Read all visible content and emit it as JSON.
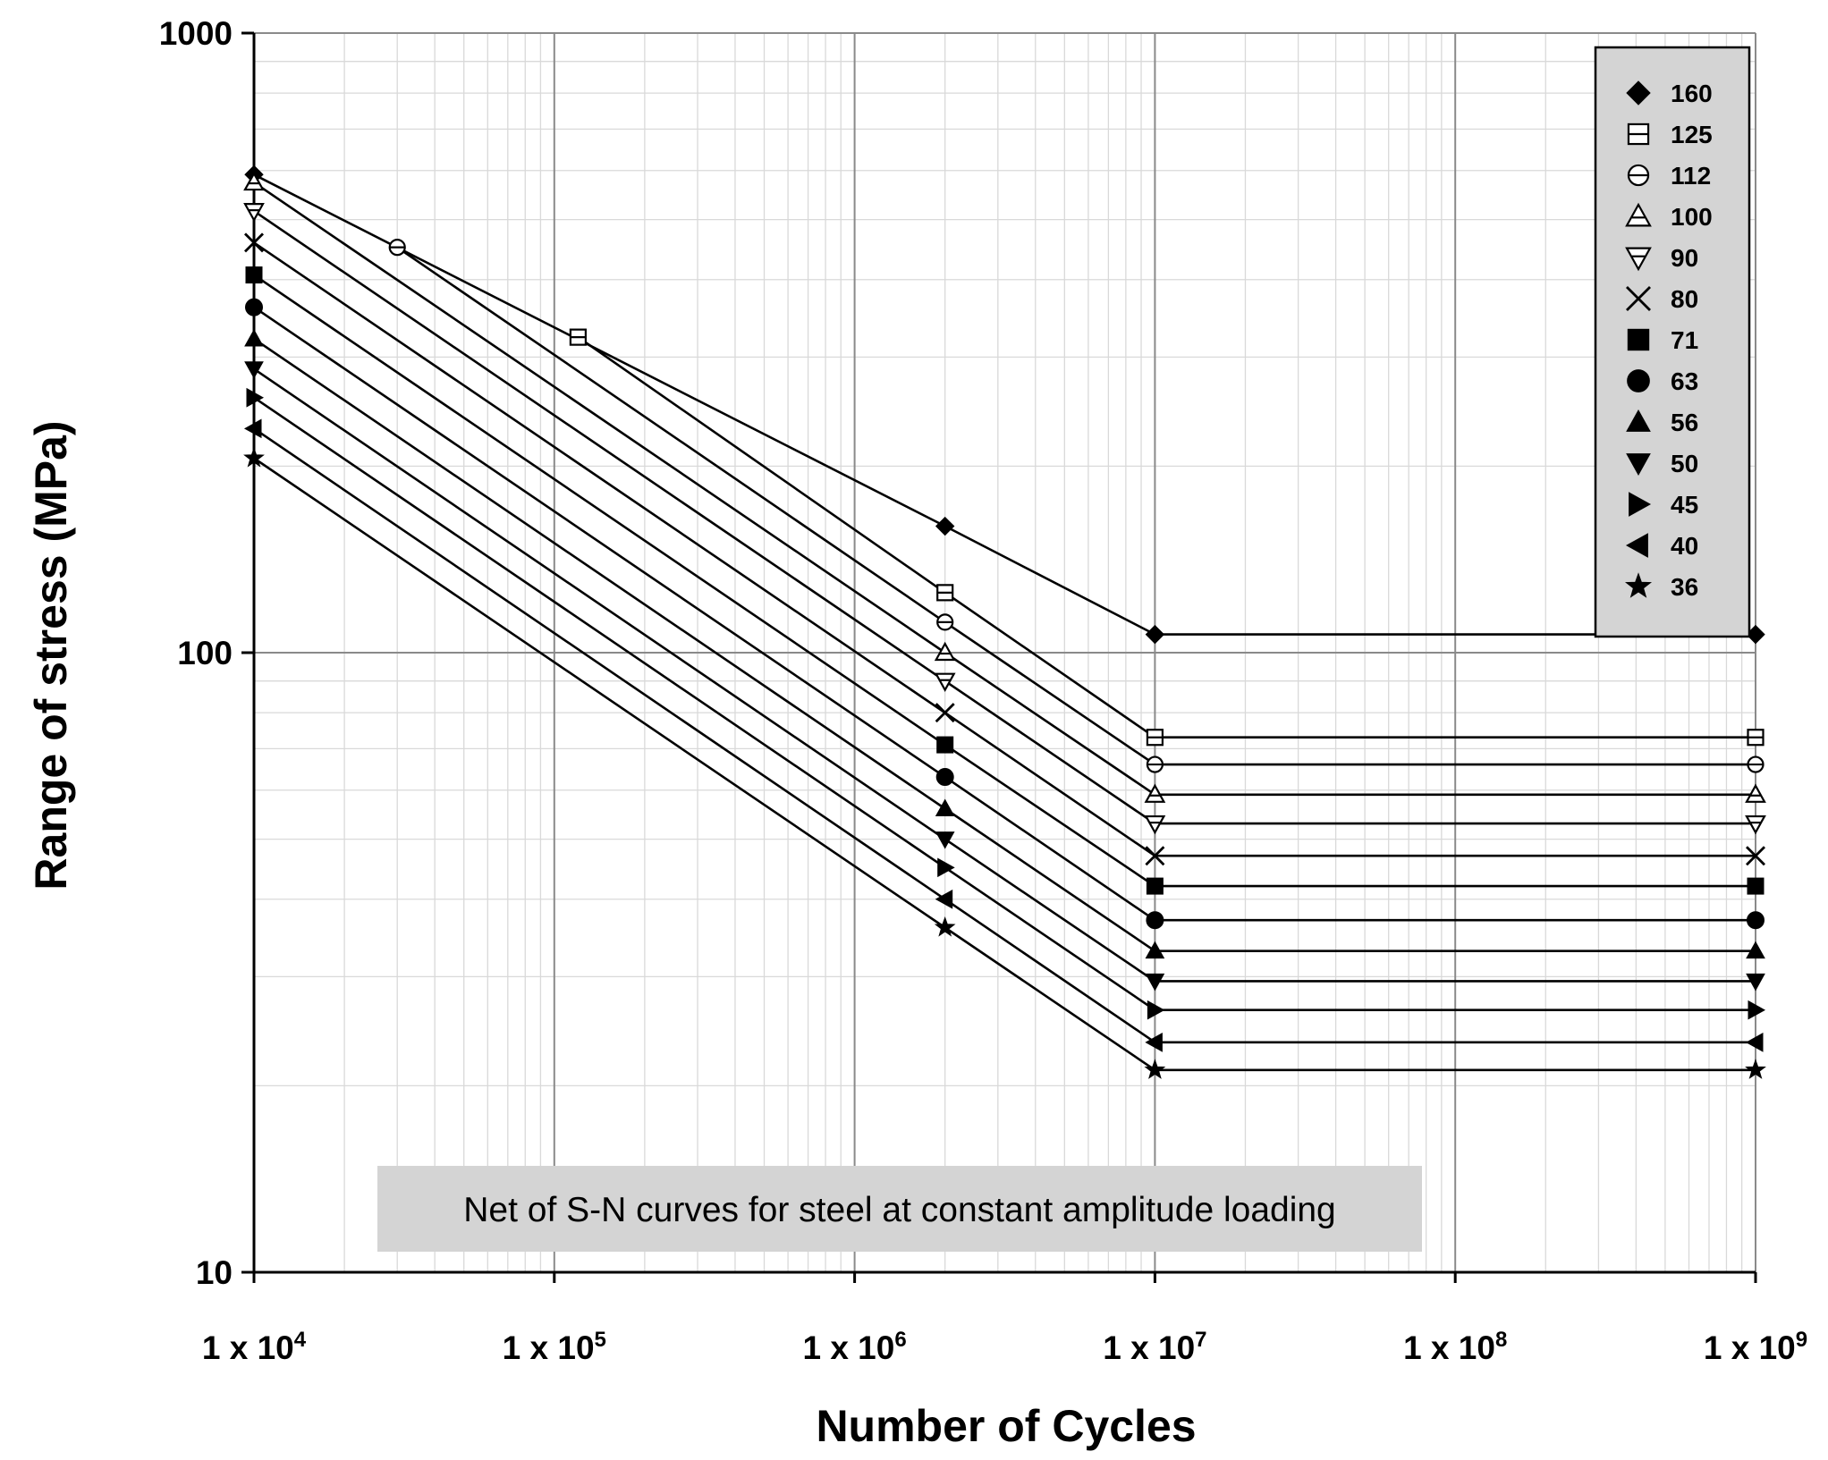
{
  "chart_data": {
    "type": "line",
    "title": "",
    "annotation": "Net of S-N curves for steel at constant amplitude loading",
    "xlabel": "Number of Cycles",
    "ylabel": "Range of stress (MPa)",
    "x_scale": "log",
    "y_scale": "log",
    "xlim": [
      10000,
      1000000000
    ],
    "ylim": [
      10,
      1000
    ],
    "x_ticks": [
      {
        "value": 10000,
        "base": "1 x 10",
        "exp": "4"
      },
      {
        "value": 100000,
        "base": "1 x 10",
        "exp": "5"
      },
      {
        "value": 1000000,
        "base": "1 x 10",
        "exp": "6"
      },
      {
        "value": 10000000,
        "base": "1 x 10",
        "exp": "7"
      },
      {
        "value": 100000000,
        "base": "1 x 10",
        "exp": "8"
      },
      {
        "value": 1000000000,
        "base": "1 x 10",
        "exp": "9"
      }
    ],
    "y_ticks": [
      {
        "value": 10,
        "label": "10"
      },
      {
        "value": 100,
        "label": "100"
      },
      {
        "value": 1000,
        "label": "1000"
      }
    ],
    "grid": true,
    "legend_position": "top-right",
    "series": [
      {
        "name": "160",
        "marker": "diamond-filled",
        "points": [
          [
            10000,
            591
          ],
          [
            2000000,
            160
          ],
          [
            10000000,
            107
          ],
          [
            1000000000,
            107
          ]
        ]
      },
      {
        "name": "125",
        "marker": "square-open",
        "points": [
          [
            120000,
            323
          ],
          [
            2000000,
            125
          ],
          [
            10000000,
            73
          ],
          [
            1000000000,
            73
          ]
        ]
      },
      {
        "name": "112",
        "marker": "circle-open",
        "points": [
          [
            30000,
            451
          ],
          [
            2000000,
            112
          ],
          [
            10000000,
            66
          ],
          [
            1000000000,
            66
          ]
        ]
      },
      {
        "name": "100",
        "marker": "triangle-up-open",
        "points": [
          [
            10000,
            574
          ],
          [
            2000000,
            100
          ],
          [
            10000000,
            59
          ],
          [
            1000000000,
            59
          ]
        ]
      },
      {
        "name": "90",
        "marker": "triangle-down-open",
        "points": [
          [
            10000,
            516
          ],
          [
            2000000,
            90
          ],
          [
            10000000,
            53
          ],
          [
            1000000000,
            53
          ]
        ]
      },
      {
        "name": "80",
        "marker": "x-cross",
        "points": [
          [
            10000,
            459
          ],
          [
            2000000,
            80
          ],
          [
            10000000,
            47
          ],
          [
            1000000000,
            47
          ]
        ]
      },
      {
        "name": "71",
        "marker": "square-filled",
        "points": [
          [
            10000,
            407
          ],
          [
            2000000,
            71
          ],
          [
            10000000,
            42
          ],
          [
            1000000000,
            42
          ]
        ]
      },
      {
        "name": "63",
        "marker": "circle-filled",
        "points": [
          [
            10000,
            361
          ],
          [
            2000000,
            63
          ],
          [
            10000000,
            37
          ],
          [
            1000000000,
            37
          ]
        ]
      },
      {
        "name": "56",
        "marker": "triangle-up-filled",
        "points": [
          [
            10000,
            321
          ],
          [
            2000000,
            56
          ],
          [
            10000000,
            33
          ],
          [
            1000000000,
            33
          ]
        ]
      },
      {
        "name": "50",
        "marker": "triangle-down-filled",
        "points": [
          [
            10000,
            287
          ],
          [
            2000000,
            50
          ],
          [
            10000000,
            29.5
          ],
          [
            1000000000,
            29.5
          ]
        ]
      },
      {
        "name": "45",
        "marker": "triangle-right-filled",
        "points": [
          [
            10000,
            258
          ],
          [
            2000000,
            45
          ],
          [
            10000000,
            26.5
          ],
          [
            1000000000,
            26.5
          ]
        ]
      },
      {
        "name": "40",
        "marker": "triangle-left-filled",
        "points": [
          [
            10000,
            230
          ],
          [
            2000000,
            40
          ],
          [
            10000000,
            23.5
          ],
          [
            1000000000,
            23.5
          ]
        ]
      },
      {
        "name": "36",
        "marker": "star-filled",
        "points": [
          [
            10000,
            206
          ],
          [
            2000000,
            36
          ],
          [
            10000000,
            21.2
          ],
          [
            1000000000,
            21.2
          ]
        ]
      }
    ]
  }
}
